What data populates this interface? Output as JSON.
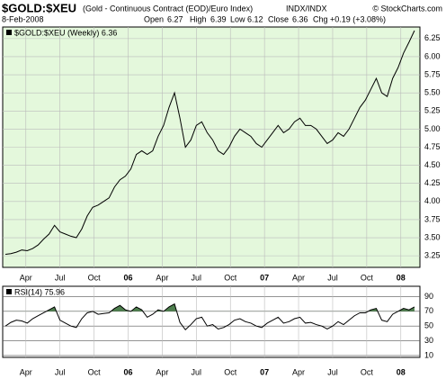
{
  "header": {
    "symbol": "$GOLD:$XEU",
    "description": "(Gold - Continuous Contract (EOD)/Euro Index)",
    "exchange": "INDX/INDX",
    "copyright": "© StockCharts.com",
    "date": "8-Feb-2008",
    "open_label": "Open",
    "open": "6.27",
    "high_label": "High",
    "high": "6.39",
    "low_label": "Low",
    "low": "6.12",
    "close_label": "Close",
    "close": "6.36",
    "chg_label": "Chg",
    "chg": "+0.19 (+3.08%)"
  },
  "chart_data": [
    {
      "type": "line",
      "legend": "$GOLD:$XEU (Weekly) 6.36",
      "background": "#e4f8dc",
      "grid": true,
      "xlim": [
        2005.08,
        2008.14
      ],
      "ylim": [
        3.09,
        6.41
      ],
      "xticks": [
        {
          "value": 2005.25,
          "label": "Apr"
        },
        {
          "value": 2005.5,
          "label": "Jul"
        },
        {
          "value": 2005.75,
          "label": "Oct"
        },
        {
          "value": 2006,
          "label": "06"
        },
        {
          "value": 2006.25,
          "label": "Apr"
        },
        {
          "value": 2006.5,
          "label": "Jul"
        },
        {
          "value": 2006.75,
          "label": "Oct"
        },
        {
          "value": 2007,
          "label": "07"
        },
        {
          "value": 2007.25,
          "label": "Apr"
        },
        {
          "value": 2007.5,
          "label": "Jul"
        },
        {
          "value": 2007.75,
          "label": "Oct"
        },
        {
          "value": 2008,
          "label": "08"
        }
      ],
      "yticks": [
        3.25,
        {
          "value": 3.5,
          "label": "3.50"
        },
        3.75,
        {
          "value": 4,
          "label": "4.00"
        },
        4.25,
        {
          "value": 4.5,
          "label": "4.50"
        },
        4.75,
        {
          "value": 5,
          "label": "5.00"
        },
        5.25,
        {
          "value": 5.5,
          "label": "5.50"
        },
        5.75,
        {
          "value": 6,
          "label": "6.00"
        },
        6.25
      ],
      "x": [
        2005.1,
        2005.14,
        2005.18,
        2005.22,
        2005.26,
        2005.3,
        2005.34,
        2005.38,
        2005.42,
        2005.46,
        2005.5,
        2005.54,
        2005.58,
        2005.62,
        2005.66,
        2005.7,
        2005.74,
        2005.78,
        2005.82,
        2005.86,
        2005.9,
        2005.94,
        2005.98,
        2006.02,
        2006.06,
        2006.1,
        2006.14,
        2006.18,
        2006.22,
        2006.26,
        2006.3,
        2006.34,
        2006.38,
        2006.42,
        2006.46,
        2006.5,
        2006.54,
        2006.58,
        2006.62,
        2006.66,
        2006.7,
        2006.74,
        2006.78,
        2006.82,
        2006.86,
        2006.9,
        2006.94,
        2006.98,
        2007.02,
        2007.06,
        2007.1,
        2007.14,
        2007.18,
        2007.22,
        2007.26,
        2007.3,
        2007.34,
        2007.38,
        2007.42,
        2007.46,
        2007.5,
        2007.54,
        2007.58,
        2007.62,
        2007.66,
        2007.7,
        2007.74,
        2007.78,
        2007.82,
        2007.86,
        2007.9,
        2007.94,
        2007.98,
        2008.02,
        2008.06,
        2008.1
      ],
      "series": [
        {
          "color": "#000000",
          "values": [
            3.27,
            3.28,
            3.3,
            3.33,
            3.32,
            3.35,
            3.4,
            3.48,
            3.55,
            3.67,
            3.58,
            3.55,
            3.52,
            3.5,
            3.62,
            3.8,
            3.92,
            3.95,
            4.0,
            4.05,
            4.2,
            4.3,
            4.35,
            4.45,
            4.65,
            4.7,
            4.65,
            4.7,
            4.9,
            5.05,
            5.3,
            5.5,
            5.15,
            4.75,
            4.85,
            5.05,
            5.1,
            4.95,
            4.85,
            4.7,
            4.65,
            4.75,
            4.9,
            5.0,
            4.95,
            4.9,
            4.8,
            4.75,
            4.85,
            4.95,
            5.05,
            4.95,
            5.0,
            5.1,
            5.15,
            5.05,
            5.05,
            5.0,
            4.9,
            4.8,
            4.85,
            4.95,
            4.9,
            5.0,
            5.15,
            5.3,
            5.4,
            5.55,
            5.7,
            5.5,
            5.45,
            5.7,
            5.85,
            6.05,
            6.2,
            6.36
          ]
        }
      ]
    },
    {
      "type": "line",
      "legend": "RSI(14) 75.96",
      "background": "#ffffff",
      "grid": true,
      "fill_color": "#4e7f4e",
      "fill_above": 70,
      "xlim": [
        2005.08,
        2008.14
      ],
      "ylim": [
        7.5,
        104
      ],
      "xticks": [
        {
          "value": 2005.25,
          "label": "Apr"
        },
        {
          "value": 2005.5,
          "label": "Jul"
        },
        {
          "value": 2005.75,
          "label": "Oct"
        },
        {
          "value": 2006,
          "label": "06"
        },
        {
          "value": 2006.25,
          "label": "Apr"
        },
        {
          "value": 2006.5,
          "label": "Jul"
        },
        {
          "value": 2006.75,
          "label": "Oct"
        },
        {
          "value": 2007,
          "label": "07"
        },
        {
          "value": 2007.25,
          "label": "Apr"
        },
        {
          "value": 2007.5,
          "label": "Jul"
        },
        {
          "value": 2007.75,
          "label": "Oct"
        },
        {
          "value": 2008,
          "label": "08"
        }
      ],
      "yticks": [
        10,
        30,
        50,
        70,
        90
      ],
      "x": [
        2005.1,
        2005.14,
        2005.18,
        2005.22,
        2005.26,
        2005.3,
        2005.34,
        2005.38,
        2005.42,
        2005.46,
        2005.5,
        2005.54,
        2005.58,
        2005.62,
        2005.66,
        2005.7,
        2005.74,
        2005.78,
        2005.82,
        2005.86,
        2005.9,
        2005.94,
        2005.98,
        2006.02,
        2006.06,
        2006.1,
        2006.14,
        2006.18,
        2006.22,
        2006.26,
        2006.3,
        2006.34,
        2006.38,
        2006.42,
        2006.46,
        2006.5,
        2006.54,
        2006.58,
        2006.62,
        2006.66,
        2006.7,
        2006.74,
        2006.78,
        2006.82,
        2006.86,
        2006.9,
        2006.94,
        2006.98,
        2007.02,
        2007.06,
        2007.1,
        2007.14,
        2007.18,
        2007.22,
        2007.26,
        2007.3,
        2007.34,
        2007.38,
        2007.42,
        2007.46,
        2007.5,
        2007.54,
        2007.58,
        2007.62,
        2007.66,
        2007.7,
        2007.74,
        2007.78,
        2007.82,
        2007.86,
        2007.9,
        2007.94,
        2007.98,
        2008.02,
        2008.06,
        2008.1
      ],
      "series": [
        {
          "color": "#000000",
          "values": [
            50,
            55,
            58,
            57,
            54,
            60,
            64,
            68,
            72,
            76,
            58,
            54,
            50,
            48,
            60,
            68,
            70,
            66,
            67,
            68,
            74,
            78,
            72,
            70,
            76,
            72,
            62,
            66,
            72,
            70,
            76,
            80,
            55,
            45,
            52,
            60,
            62,
            50,
            52,
            46,
            48,
            52,
            58,
            60,
            56,
            54,
            50,
            48,
            54,
            58,
            62,
            54,
            56,
            60,
            62,
            54,
            55,
            52,
            50,
            46,
            50,
            56,
            52,
            58,
            64,
            68,
            68,
            72,
            74,
            58,
            56,
            66,
            70,
            74,
            72,
            76
          ]
        }
      ]
    }
  ]
}
